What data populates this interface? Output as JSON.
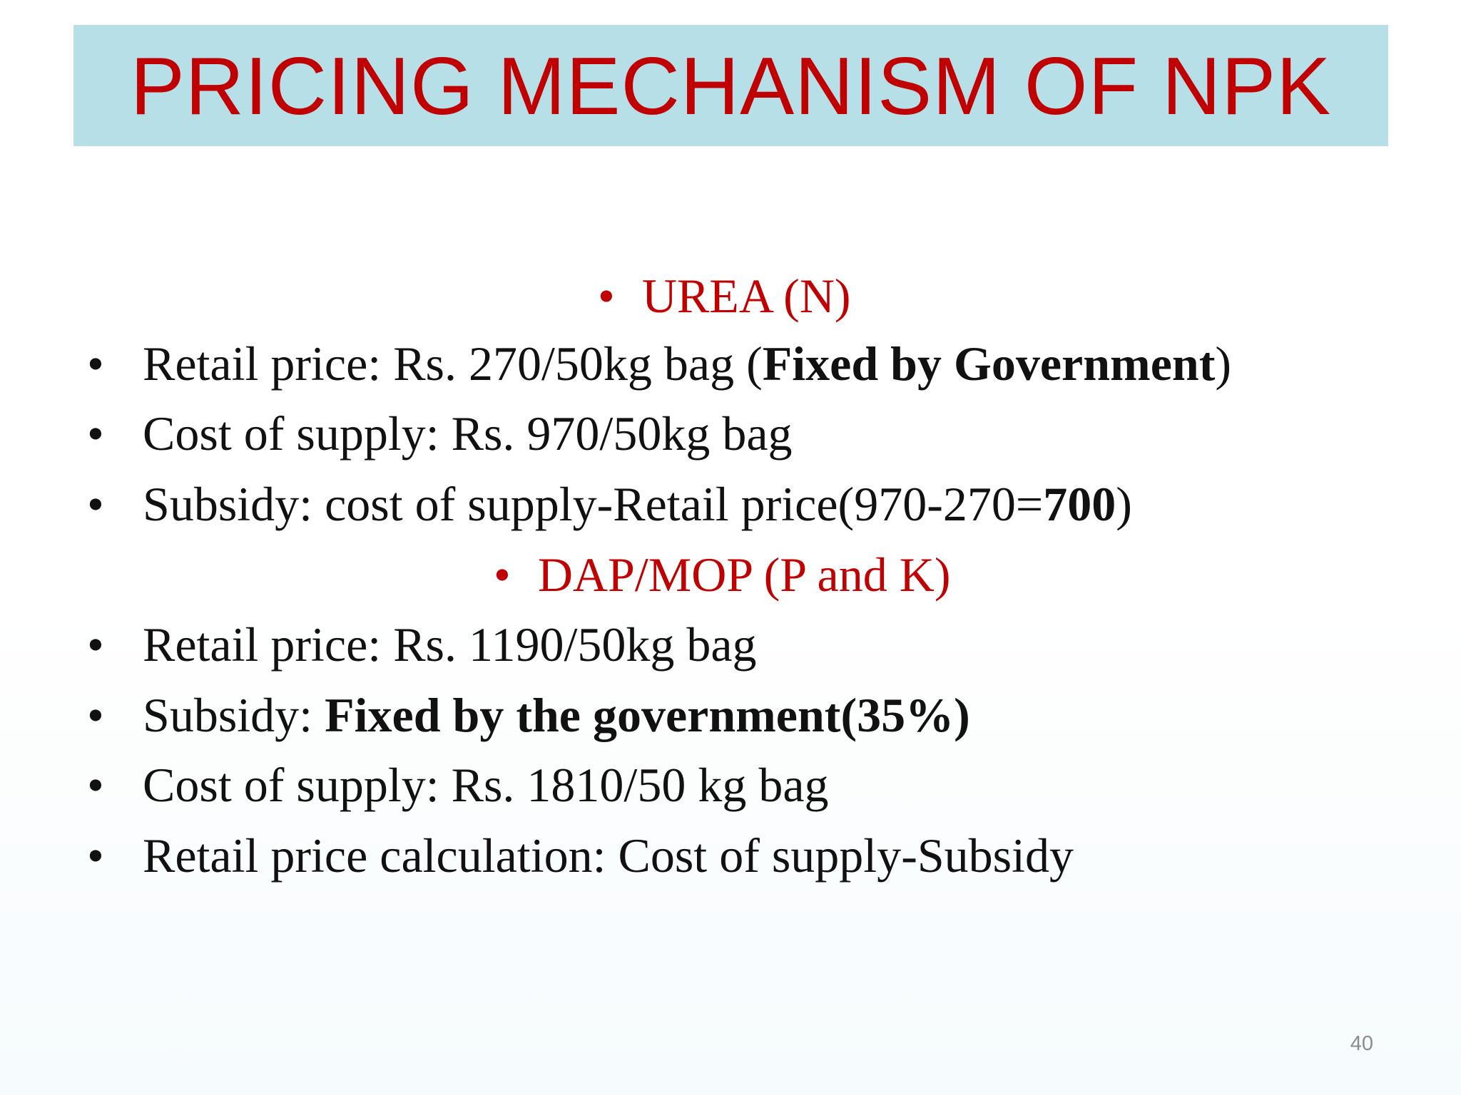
{
  "title": "PRICING MECHANISM OF NPK",
  "bullet_char": "•",
  "sections": [
    {
      "heading": "UREA (N)",
      "items": [
        {
          "prefix": "Retail price: Rs. 270/50kg bag (",
          "bold": "Fixed by Government",
          "suffix": ")"
        },
        {
          "prefix": "Cost of supply: Rs. 970/50kg bag",
          "bold": "",
          "suffix": ""
        },
        {
          "prefix": "Subsidy: cost of supply-Retail price(970-270=",
          "bold": "700",
          "suffix": ")"
        }
      ]
    },
    {
      "heading": "DAP/MOP (P and K)",
      "items": [
        {
          "prefix": "Retail price: Rs. 1190/50kg bag",
          "bold": "",
          "suffix": ""
        },
        {
          "prefix": "Subsidy: ",
          "bold": "Fixed by the government(35%)",
          "suffix": ""
        },
        {
          "prefix": "Cost of supply: Rs. 1810/50 kg bag",
          "bold": "",
          "suffix": ""
        },
        {
          "prefix": "Retail price calculation: Cost of supply-Subsidy",
          "bold": "",
          "suffix": ""
        }
      ]
    }
  ],
  "page_number": "40",
  "colors": {
    "title_bar": "#b7dfe8",
    "title_text": "#c00000",
    "heading_text": "#c00000",
    "body_text": "#111111",
    "page_number": "#8c8c8c"
  }
}
